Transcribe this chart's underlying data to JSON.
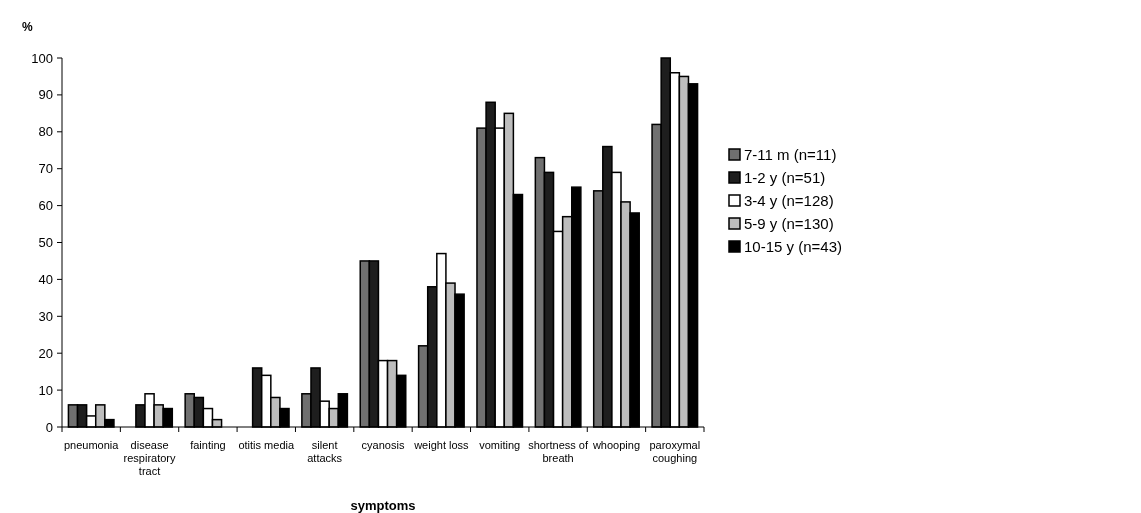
{
  "chart_data": {
    "type": "bar",
    "xlabel": "symptoms",
    "ylabel": "%",
    "categories": [
      "pneumonia",
      "disease respiratory tract",
      "fainting",
      "otitis media",
      "silent attacks",
      "cyanosis",
      "weight loss",
      "vomiting",
      "shortness of breath",
      "whooping",
      "paroxymal coughing"
    ],
    "series": [
      {
        "name": "7-11 m (n=11)",
        "color": "#707070",
        "values": [
          6,
          0,
          9,
          0,
          9,
          45,
          22,
          81,
          73,
          64,
          82
        ]
      },
      {
        "name": "1-2 y (n=51)",
        "color": "#1e1e1e",
        "values": [
          6,
          6,
          8,
          16,
          16,
          45,
          38,
          88,
          69,
          76,
          100
        ]
      },
      {
        "name": "3-4 y (n=128)",
        "color": "#ffffff",
        "values": [
          3,
          9,
          5,
          14,
          7,
          18,
          47,
          81,
          53,
          69,
          96
        ]
      },
      {
        "name": "5-9 y (n=130)",
        "color": "#bdbdbd",
        "values": [
          6,
          6,
          2,
          8,
          5,
          18,
          39,
          85,
          57,
          61,
          95
        ]
      },
      {
        "name": "10-15 y (n=43)",
        "color": "#000000",
        "values": [
          2,
          5,
          0,
          5,
          9,
          14,
          36,
          63,
          65,
          58,
          93
        ]
      }
    ],
    "ylim": [
      0,
      100
    ],
    "yticks": [
      0,
      10,
      20,
      30,
      40,
      50,
      60,
      70,
      80,
      90,
      100
    ],
    "legend": "right"
  }
}
